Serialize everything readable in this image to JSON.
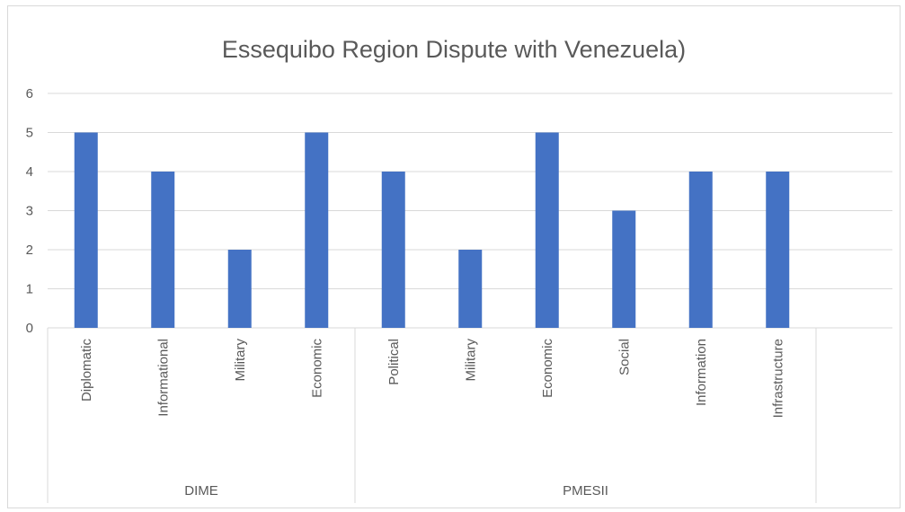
{
  "chart_data": {
    "type": "bar",
    "title": "Essequibo Region Dispute with Venezuela)",
    "xlabel": "",
    "ylabel": "",
    "ylim": [
      0,
      6
    ],
    "yticks": [
      0,
      1,
      2,
      3,
      4,
      5,
      6
    ],
    "grid": true,
    "legend": "none",
    "bar_color": "#4472C4",
    "groups": [
      {
        "name": "DIME",
        "categories": [
          "Diplomatic",
          "Informational",
          "Military",
          "Economic"
        ],
        "values": [
          5,
          4,
          2,
          5
        ]
      },
      {
        "name": "PMESII",
        "categories": [
          "Political",
          "Military",
          "Economic",
          "Social",
          "Information",
          "Infrastructure"
        ],
        "values": [
          4,
          2,
          5,
          3,
          4,
          4
        ]
      }
    ]
  }
}
